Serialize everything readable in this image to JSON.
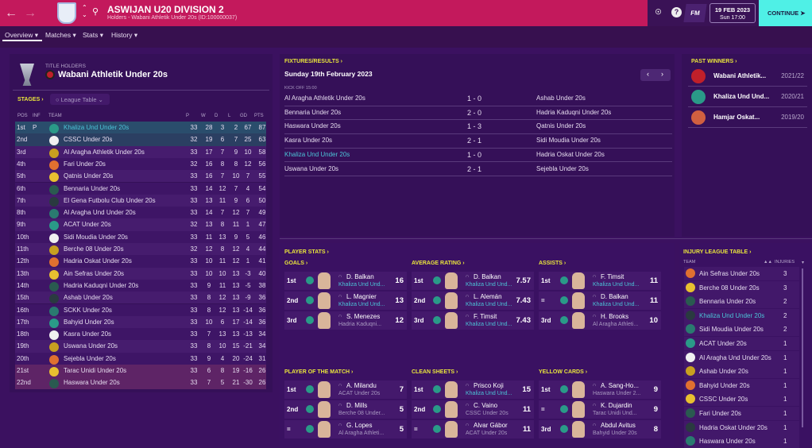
{
  "header": {
    "title": "ASWIJAN U20 DIVISION 2",
    "subtitle": "Holders - Wabani Athletik Under 20s (ID:100000037)",
    "fm": "FM",
    "date": "19 FEB 2023",
    "time": "Sun 17:00",
    "continue": "CONTINUE"
  },
  "colors": {
    "header": "#c3195c",
    "accent_yellow": "#e8e43c",
    "continue": "#4ff0e6",
    "highlight_team": "#4cc4d8"
  },
  "tabs": [
    "Overview",
    "Matches",
    "Stats",
    "History"
  ],
  "holders": {
    "label": "TITLE HOLDERS",
    "team": "Wabani Athletik Under 20s"
  },
  "stages": {
    "label": "STAGES",
    "select": "League Table"
  },
  "table": {
    "headers": [
      "POS",
      "INF",
      "TEAM",
      "P",
      "W",
      "D",
      "L",
      "GD",
      "PTS"
    ],
    "rows": [
      [
        "1st",
        "P",
        "Khaliza Und Under 20s",
        "33",
        "28",
        "3",
        "2",
        "67",
        "87"
      ],
      [
        "2nd",
        "",
        "CSSC Under 20s",
        "32",
        "19",
        "6",
        "7",
        "25",
        "63"
      ],
      [
        "3rd",
        "",
        "Al Aragha Athletik Under 20s",
        "33",
        "17",
        "7",
        "9",
        "10",
        "58"
      ],
      [
        "4th",
        "",
        "Fari Under 20s",
        "32",
        "16",
        "8",
        "8",
        "12",
        "56"
      ],
      [
        "5th",
        "",
        "Qatnis Under 20s",
        "33",
        "16",
        "7",
        "10",
        "7",
        "55"
      ],
      [
        "6th",
        "",
        "Bennaria Under 20s",
        "33",
        "14",
        "12",
        "7",
        "4",
        "54"
      ],
      [
        "7th",
        "",
        "El Gena Futbolu Club Under 20s",
        "33",
        "13",
        "11",
        "9",
        "6",
        "50"
      ],
      [
        "8th",
        "",
        "Al Aragha Und Under 20s",
        "33",
        "14",
        "7",
        "12",
        "7",
        "49"
      ],
      [
        "9th",
        "",
        "ACAT Under 20s",
        "32",
        "13",
        "8",
        "11",
        "1",
        "47"
      ],
      [
        "10th",
        "",
        "Sidi Moudia Under 20s",
        "33",
        "11",
        "13",
        "9",
        "5",
        "46"
      ],
      [
        "11th",
        "",
        "Berche 08 Under 20s",
        "32",
        "12",
        "8",
        "12",
        "4",
        "44"
      ],
      [
        "12th",
        "",
        "Hadria Oskat Under 20s",
        "33",
        "10",
        "11",
        "12",
        "1",
        "41"
      ],
      [
        "13th",
        "",
        "Ain Sefras Under 20s",
        "33",
        "10",
        "10",
        "13",
        "-3",
        "40"
      ],
      [
        "14th",
        "",
        "Hadria Kaduqni Under 20s",
        "33",
        "9",
        "11",
        "13",
        "-5",
        "38"
      ],
      [
        "15th",
        "",
        "Ashab Under 20s",
        "33",
        "8",
        "12",
        "13",
        "-9",
        "36"
      ],
      [
        "16th",
        "",
        "SCKK Under 20s",
        "33",
        "8",
        "12",
        "13",
        "-14",
        "36"
      ],
      [
        "17th",
        "",
        "Bahyid Under 20s",
        "33",
        "10",
        "6",
        "17",
        "-14",
        "36"
      ],
      [
        "18th",
        "",
        "Kasra Under 20s",
        "33",
        "7",
        "13",
        "13",
        "-13",
        "34"
      ],
      [
        "19th",
        "",
        "Uswana Under 20s",
        "33",
        "8",
        "10",
        "15",
        "-21",
        "34"
      ],
      [
        "20th",
        "",
        "Sejebla Under 20s",
        "33",
        "9",
        "4",
        "20",
        "-24",
        "31"
      ],
      [
        "21st",
        "",
        "Tarac Unidi Under 20s",
        "33",
        "6",
        "8",
        "19",
        "-16",
        "26"
      ],
      [
        "22nd",
        "",
        "Haswara Under 20s",
        "33",
        "7",
        "5",
        "21",
        "-30",
        "26"
      ]
    ]
  },
  "fixtures": {
    "label": "FIXTURES/RESULTS",
    "date": "Sunday 19th February 2023",
    "kickoff": "KICK OFF 15:00",
    "matches": [
      [
        "Al Aragha Athletik Under 20s",
        "1 - 0",
        "Ashab Under 20s"
      ],
      [
        "Bennaria Under 20s",
        "2 - 0",
        "Hadria Kaduqni Under 20s"
      ],
      [
        "Haswara Under 20s",
        "1 - 3",
        "Qatnis Under 20s"
      ],
      [
        "Kasra Under 20s",
        "2 - 1",
        "Sidi Moudia Under 20s"
      ],
      [
        "Khaliza Und Under 20s",
        "1 - 0",
        "Hadria Oskat Under 20s"
      ],
      [
        "Uswana Under 20s",
        "2 - 1",
        "Sejebla Under 20s"
      ]
    ]
  },
  "past_winners": {
    "label": "PAST WINNERS",
    "items": [
      [
        "Wabani Athletik...",
        "2021/22"
      ],
      [
        "Khaliza Und Und...",
        "2020/21"
      ],
      [
        "Hamjar Oskat...",
        "2019/20"
      ]
    ]
  },
  "player_stats": {
    "label": "PLAYER STATS",
    "groups": [
      {
        "label": "GOALS",
        "rows": [
          [
            "1st",
            "D. Balkan",
            "Khaliza Und Und...",
            "16"
          ],
          [
            "2nd",
            "L. Magnier",
            "Khaliza Und Und...",
            "13"
          ],
          [
            "3rd",
            "S. Menezes",
            "Hadria Kaduqni...",
            "12"
          ]
        ]
      },
      {
        "label": "AVERAGE RATING",
        "rows": [
          [
            "1st",
            "D. Balkan",
            "Khaliza Und Und...",
            "7.57"
          ],
          [
            "2nd",
            "L. Alemán",
            "Khaliza Und Und...",
            "7.43"
          ],
          [
            "3rd",
            "F. Timsit",
            "Khaliza Und Und...",
            "7.43"
          ]
        ]
      },
      {
        "label": "ASSISTS",
        "rows": [
          [
            "1st",
            "F. Timsit",
            "Khaliza Und Und...",
            "11"
          ],
          [
            "=",
            "D. Balkan",
            "Khaliza Und Und...",
            "11"
          ],
          [
            "3rd",
            "H. Brooks",
            "Al Aragha Athleti...",
            "10"
          ]
        ]
      },
      {
        "label": "PLAYER OF THE MATCH",
        "rows": [
          [
            "1st",
            "A. Milandu",
            "ACAT Under 20s",
            "7"
          ],
          [
            "2nd",
            "D. Mills",
            "Berche 08 Under...",
            "5"
          ],
          [
            "=",
            "G. Lopes",
            "Al Aragha Athleti...",
            "5"
          ]
        ]
      },
      {
        "label": "CLEAN SHEETS",
        "rows": [
          [
            "1st",
            "Prisco Koji",
            "Khaliza Und Und...",
            "15"
          ],
          [
            "2nd",
            "C. Vaino",
            "CSSC Under 20s",
            "11"
          ],
          [
            "=",
            "Alvar Gábor",
            "ACAT Under 20s",
            "11"
          ]
        ]
      },
      {
        "label": "YELLOW CARDS",
        "rows": [
          [
            "1st",
            "A. Sang-Ho...",
            "Haswara Under 2...",
            "9"
          ],
          [
            "=",
            "K. Dujardin",
            "Tarac Unidi Und...",
            "9"
          ],
          [
            "3rd",
            "Abdul Avitus",
            "Bahyid Under 20s",
            "8"
          ]
        ]
      }
    ]
  },
  "injury": {
    "label": "INJURY LEAGUE TABLE",
    "team_header": "TEAM",
    "inj_header": "INJURIES",
    "rows": [
      [
        "Ain Sefras Under 20s",
        "3"
      ],
      [
        "Berche 08 Under 20s",
        "3"
      ],
      [
        "Bennaria Under 20s",
        "2"
      ],
      [
        "Khaliza Und Under 20s",
        "2"
      ],
      [
        "Sidi Moudia Under 20s",
        "2"
      ],
      [
        "ACAT Under 20s",
        "1"
      ],
      [
        "Al Aragha Und Under 20s",
        "1"
      ],
      [
        "Ashab Under 20s",
        "1"
      ],
      [
        "Bahyid Under 20s",
        "1"
      ],
      [
        "CSSC Under 20s",
        "1"
      ],
      [
        "Fari Under 20s",
        "1"
      ],
      [
        "Hadria Oskat Under 20s",
        "1"
      ],
      [
        "Haswara Under 20s",
        "1"
      ]
    ]
  }
}
